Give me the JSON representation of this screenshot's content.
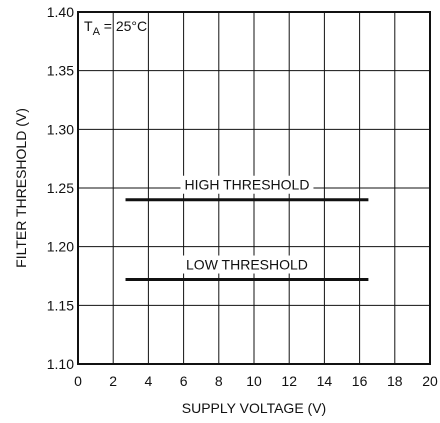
{
  "chart_data": {
    "type": "line",
    "xlabel": "SUPPLY VOLTAGE (V)",
    "ylabel": "FILTER THRESHOLD (V)",
    "xlim": [
      0,
      20
    ],
    "ylim": [
      1.1,
      1.4
    ],
    "x_ticks": [
      0,
      2,
      4,
      6,
      8,
      10,
      12,
      14,
      16,
      18,
      20
    ],
    "x_tick_labels": [
      "0",
      "2",
      "4",
      "6",
      "8",
      "10",
      "12",
      "14",
      "16",
      "18",
      "20"
    ],
    "y_ticks": [
      1.1,
      1.15,
      1.2,
      1.25,
      1.3,
      1.35,
      1.4
    ],
    "y_tick_labels": [
      "1.10",
      "1.15",
      "1.20",
      "1.25",
      "1.30",
      "1.35",
      "1.40"
    ],
    "grid": true,
    "condition": {
      "main": "T",
      "sub": "A",
      "rest": " = 25°C"
    },
    "series": [
      {
        "name": "HIGH THRESHOLD",
        "x": [
          2.7,
          16.5
        ],
        "y": [
          1.24,
          1.24
        ]
      },
      {
        "name": "LOW THRESHOLD",
        "x": [
          2.7,
          16.5
        ],
        "y": [
          1.172,
          1.172
        ]
      }
    ],
    "colors": {
      "line": "#111111",
      "grid": "#111111"
    }
  }
}
